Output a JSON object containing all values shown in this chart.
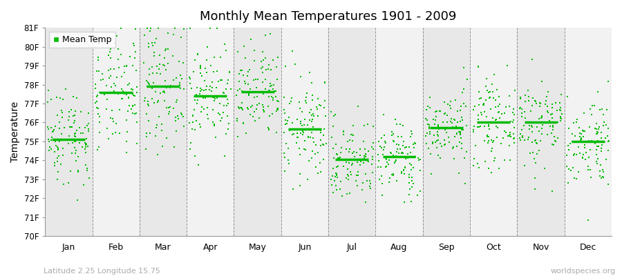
{
  "title": "Monthly Mean Temperatures 1901 - 2009",
  "ylabel": "Temperature",
  "xlabel_bottom_left": "Latitude 2.25 Longitude 15.75",
  "xlabel_bottom_right": "worldspecies.org",
  "legend_label": "Mean Temp",
  "dot_color": "#00BB00",
  "bg_colors": [
    "#E8E8E8",
    "#F2F2F2"
  ],
  "months": [
    "Jan",
    "Feb",
    "Mar",
    "Apr",
    "May",
    "Jun",
    "Jul",
    "Aug",
    "Sep",
    "Oct",
    "Nov",
    "Dec"
  ],
  "ylim": [
    70,
    81
  ],
  "yticks": [
    70,
    71,
    72,
    73,
    74,
    75,
    76,
    77,
    78,
    79,
    80,
    81
  ],
  "ytick_labels": [
    "70F",
    "71F",
    "72F",
    "73F",
    "74F",
    "75F",
    "76F",
    "77F",
    "78F",
    "79F",
    "80F",
    "81F"
  ],
  "month_means": [
    75.3,
    77.4,
    78.0,
    77.5,
    77.4,
    75.6,
    74.0,
    74.1,
    75.7,
    76.0,
    76.0,
    75.0
  ],
  "month_stds": [
    1.3,
    1.5,
    1.6,
    1.4,
    1.3,
    1.4,
    1.1,
    1.0,
    1.0,
    1.1,
    1.2,
    1.2
  ],
  "n_years": 109,
  "seed": 42,
  "dot_size": 4,
  "figsize": [
    9.0,
    4.0
  ],
  "dpi": 100
}
